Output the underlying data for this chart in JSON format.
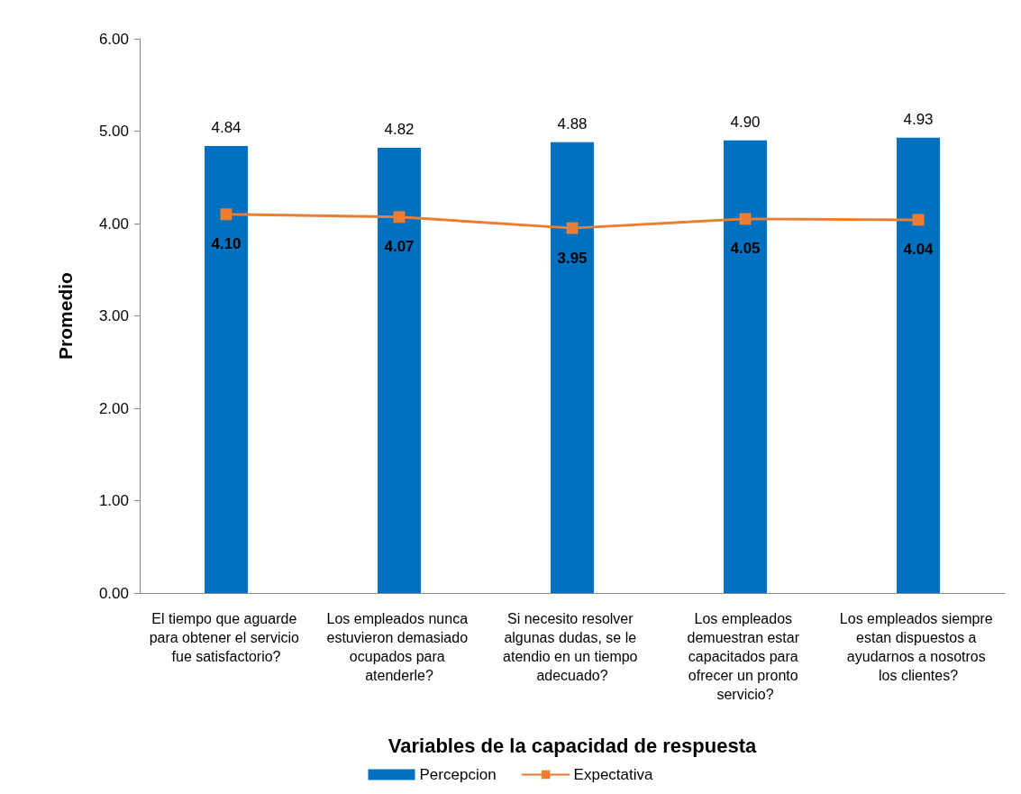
{
  "chart_data": {
    "type": "bar",
    "xlabel": "Variables de la capacidad de respuesta",
    "ylabel": "Promedio",
    "categories": [
      "El tiempo que aguarde para obtener el servicio fue satisfactorio?",
      "Los empleados nunca estuvieron demasiado ocupados para atenderle?",
      "Si necesito resolver algunas dudas, se le atendio en un tiempo adecuado?",
      "Los empleados demuestran estar capacitados para ofrecer un pronto servicio?",
      "Los empleados siempre estan dispuestos a ayudarnos a nosotros los clientes?"
    ],
    "series": [
      {
        "name": "Percepcion",
        "color": "#0070c0",
        "values": [
          4.84,
          4.82,
          4.88,
          4.9,
          4.93
        ],
        "value_labels": [
          "4.84",
          "4.82",
          "4.88",
          "4.90",
          "4.93"
        ]
      },
      {
        "name": "Expectativa",
        "type": "line",
        "color": "#ed7d31",
        "values": [
          4.1,
          4.07,
          3.95,
          4.05,
          4.04
        ],
        "value_labels": [
          "4.10",
          "4.07",
          "3.95",
          "4.05",
          "4.04"
        ]
      }
    ],
    "ylim": [
      0,
      6
    ],
    "yticks": [
      {
        "value": 0,
        "label": "0.00"
      },
      {
        "value": 1,
        "label": "1.00"
      },
      {
        "value": 2,
        "label": "2.00"
      },
      {
        "value": 3,
        "label": "3.00"
      },
      {
        "value": 4,
        "label": "4.00"
      },
      {
        "value": 5,
        "label": "5.00"
      },
      {
        "value": 6,
        "label": "6.00"
      }
    ],
    "grid": false,
    "legend": "bottom",
    "marker": "square",
    "line_style": "solid"
  }
}
